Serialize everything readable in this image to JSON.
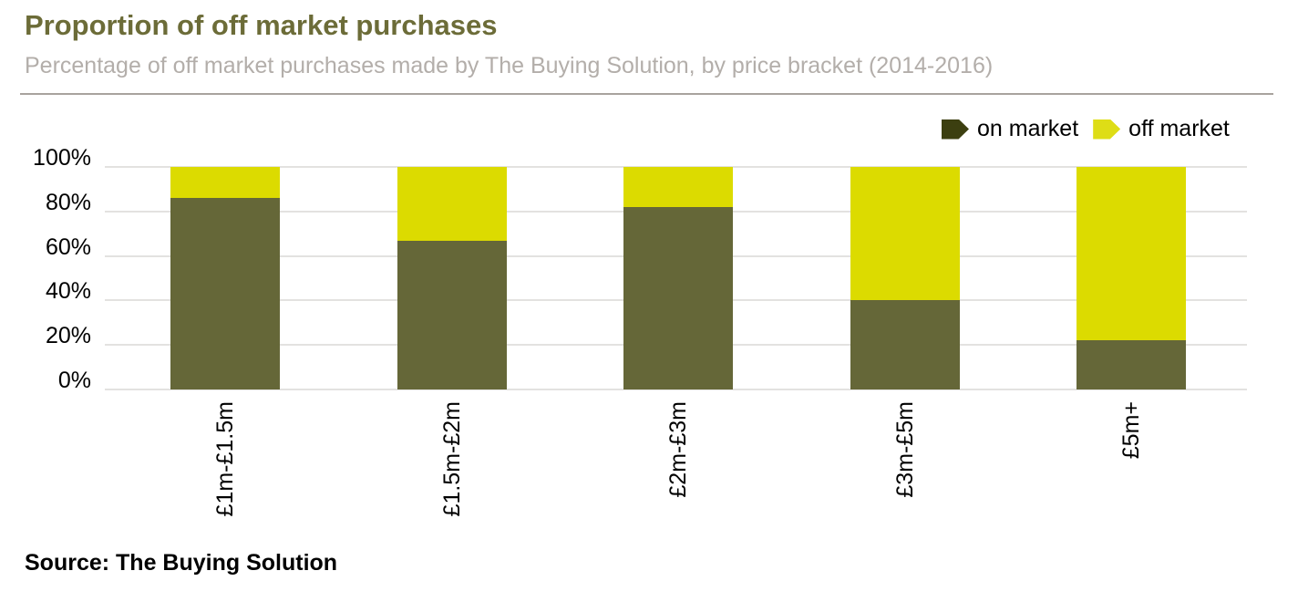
{
  "header": {
    "title": "Proportion of off market purchases",
    "subtitle": "Percentage of off market purchases made by The Buying Solution, by price bracket (2014-2016)"
  },
  "legend": {
    "items": [
      {
        "label": "on market",
        "swatch_color": "#3c3f10"
      },
      {
        "label": "off market",
        "swatch_color": "#dedd16"
      }
    ]
  },
  "source": "Source: The Buying Solution",
  "chart_data": {
    "type": "bar",
    "stacked": true,
    "orientation": "vertical",
    "title": "Proportion of off market purchases",
    "subtitle": "Percentage of off market purchases made by The Buying Solution, by price bracket (2014-2016)",
    "categories": [
      "£1m-£1.5m",
      "£1.5m-£2m",
      "£2m-£3m",
      "£3m-£5m",
      "£5m+"
    ],
    "series": [
      {
        "name": "on market",
        "color": "#656738",
        "values": [
          86,
          67,
          82,
          40,
          22
        ]
      },
      {
        "name": "off market",
        "color": "#dcdb00",
        "values": [
          14,
          33,
          18,
          60,
          78
        ]
      }
    ],
    "unit": "%",
    "y_ticks": [
      "100%",
      "80%",
      "60%",
      "40%",
      "20%",
      "0%"
    ],
    "ylim": [
      0,
      100
    ],
    "grid": true,
    "legend_position": "top-right",
    "xlabel": "",
    "ylabel": ""
  }
}
